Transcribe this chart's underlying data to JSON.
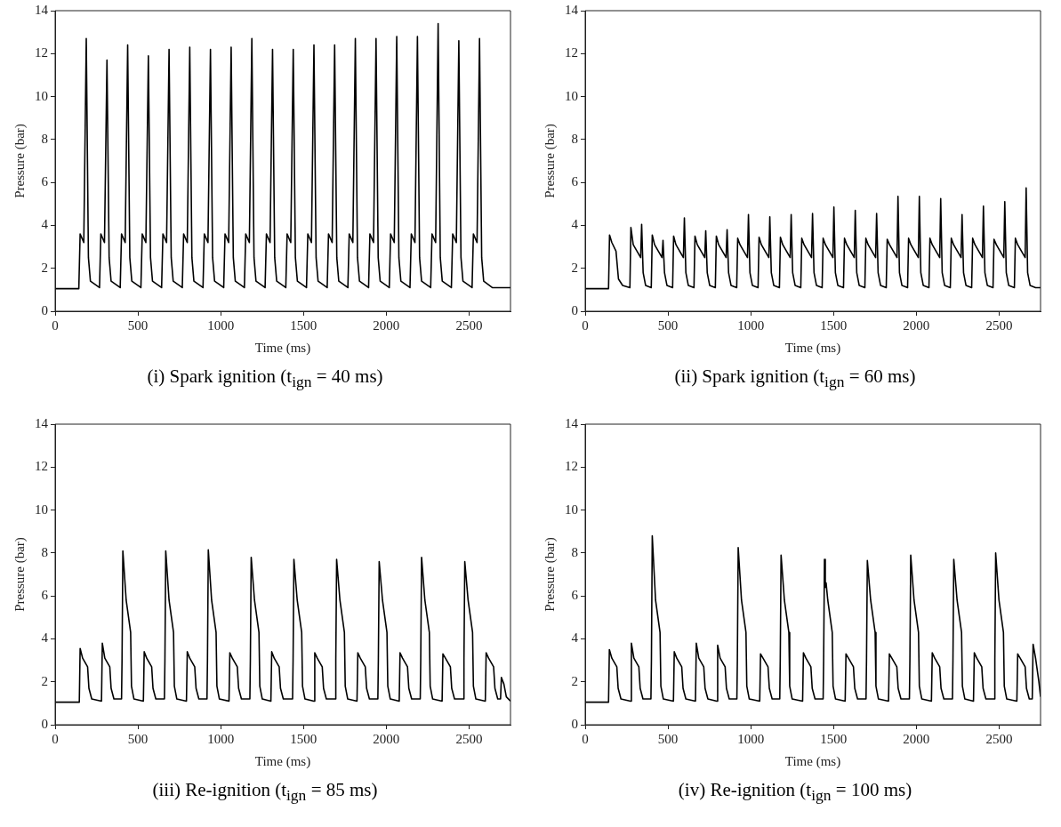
{
  "chart_data": [
    {
      "type": "line",
      "title": "(i) Spark ignition (t$_{ign}$ = 40 ms)",
      "xlabel": "Time (ms)",
      "ylabel": "Pressure (bar)",
      "xlim": [
        0,
        2750
      ],
      "xticks": [
        0,
        500,
        1000,
        1500,
        2000,
        2500
      ],
      "ylim": [
        0,
        14
      ],
      "yticks": [
        0,
        2,
        4,
        6,
        8,
        10,
        12,
        14
      ],
      "marker": "none",
      "series": [
        {
          "color": "#000000",
          "x": [
            0,
            143,
            151,
            173,
            188,
            201,
            213,
            268,
            276,
            298,
            313,
            326,
            338,
            393,
            401,
            423,
            438,
            451,
            463,
            518,
            526,
            548,
            563,
            576,
            588,
            643,
            651,
            673,
            688,
            701,
            713,
            768,
            776,
            798,
            813,
            826,
            838,
            893,
            901,
            923,
            938,
            951,
            963,
            1018,
            1026,
            1048,
            1063,
            1076,
            1088,
            1143,
            1151,
            1173,
            1188,
            1201,
            1213,
            1268,
            1276,
            1298,
            1313,
            1326,
            1338,
            1393,
            1401,
            1423,
            1438,
            1451,
            1463,
            1518,
            1526,
            1548,
            1563,
            1576,
            1588,
            1643,
            1651,
            1673,
            1688,
            1701,
            1713,
            1768,
            1776,
            1798,
            1813,
            1826,
            1838,
            1893,
            1901,
            1923,
            1938,
            1951,
            1963,
            2018,
            2026,
            2048,
            2063,
            2076,
            2088,
            2143,
            2151,
            2173,
            2188,
            2201,
            2213,
            2268,
            2276,
            2298,
            2313,
            2326,
            2338,
            2393,
            2401,
            2423,
            2438,
            2451,
            2463,
            2518,
            2526,
            2548,
            2563,
            2576,
            2588,
            2640,
            2750
          ],
          "values": [
            1.05,
            1.05,
            3.6,
            3.2,
            12.7,
            2.5,
            1.4,
            1.1,
            3.6,
            3.2,
            11.7,
            2.5,
            1.4,
            1.1,
            3.6,
            3.2,
            12.4,
            2.5,
            1.4,
            1.1,
            3.6,
            3.2,
            11.9,
            2.5,
            1.4,
            1.1,
            3.6,
            3.2,
            12.2,
            2.5,
            1.4,
            1.1,
            3.6,
            3.2,
            12.3,
            2.5,
            1.4,
            1.1,
            3.6,
            3.2,
            12.2,
            2.5,
            1.4,
            1.1,
            3.6,
            3.2,
            12.3,
            2.5,
            1.4,
            1.1,
            3.6,
            3.2,
            12.7,
            2.5,
            1.4,
            1.1,
            3.6,
            3.2,
            12.2,
            2.5,
            1.4,
            1.1,
            3.6,
            3.2,
            12.2,
            2.5,
            1.4,
            1.1,
            3.6,
            3.2,
            12.4,
            2.5,
            1.4,
            1.1,
            3.6,
            3.2,
            12.4,
            2.5,
            1.4,
            1.1,
            3.6,
            3.2,
            12.7,
            2.5,
            1.4,
            1.1,
            3.6,
            3.2,
            12.7,
            2.5,
            1.4,
            1.1,
            3.6,
            3.2,
            12.8,
            2.5,
            1.4,
            1.1,
            3.6,
            3.2,
            12.8,
            2.5,
            1.4,
            1.1,
            3.6,
            3.2,
            13.4,
            2.5,
            1.4,
            1.1,
            3.6,
            3.2,
            12.6,
            2.5,
            1.4,
            1.1,
            3.6,
            3.2,
            12.7,
            2.5,
            1.4,
            1.1,
            1.1
          ]
        }
      ]
    },
    {
      "type": "line",
      "title": "(ii) Spark ignition (t$_{ign}$ = 60 ms)",
      "xlabel": "Time (ms)",
      "ylabel": "Pressure (bar)",
      "xlim": [
        0,
        2750
      ],
      "xticks": [
        0,
        500,
        1000,
        1500,
        2000,
        2500
      ],
      "ylim": [
        0,
        14
      ],
      "yticks": [
        0,
        2,
        4,
        6,
        8,
        10,
        12,
        14
      ],
      "marker": "none",
      "series": [
        {
          "color": "#000000",
          "x": [
            0,
            141,
            147,
            161,
            186,
            201,
            226,
            270,
            276,
            290,
            335,
            341,
            350,
            365,
            399,
            405,
            419,
            464,
            470,
            479,
            494,
            528,
            534,
            548,
            593,
            599,
            608,
            623,
            657,
            663,
            677,
            722,
            728,
            737,
            752,
            786,
            792,
            806,
            851,
            857,
            866,
            881,
            915,
            921,
            935,
            980,
            986,
            995,
            1010,
            1044,
            1050,
            1064,
            1109,
            1115,
            1124,
            1139,
            1173,
            1179,
            1193,
            1238,
            1244,
            1253,
            1268,
            1302,
            1308,
            1322,
            1367,
            1373,
            1382,
            1397,
            1431,
            1437,
            1451,
            1496,
            1502,
            1511,
            1526,
            1560,
            1566,
            1580,
            1625,
            1631,
            1640,
            1655,
            1689,
            1695,
            1709,
            1754,
            1760,
            1769,
            1784,
            1818,
            1824,
            1838,
            1883,
            1889,
            1898,
            1913,
            1947,
            1953,
            1967,
            2012,
            2018,
            2027,
            2042,
            2076,
            2082,
            2096,
            2141,
            2147,
            2156,
            2171,
            2205,
            2211,
            2225,
            2270,
            2276,
            2285,
            2300,
            2334,
            2340,
            2354,
            2399,
            2405,
            2414,
            2429,
            2463,
            2469,
            2483,
            2528,
            2534,
            2543,
            2558,
            2592,
            2598,
            2612,
            2657,
            2663,
            2672,
            2687,
            2720,
            2750
          ],
          "values": [
            1.05,
            1.05,
            3.55,
            3.2,
            2.8,
            1.5,
            1.2,
            1.1,
            3.9,
            3.1,
            2.5,
            4.05,
            1.8,
            1.2,
            1.1,
            3.55,
            3.1,
            2.5,
            3.3,
            1.8,
            1.2,
            1.1,
            3.5,
            3.1,
            2.5,
            4.35,
            1.8,
            1.2,
            1.1,
            3.5,
            3.1,
            2.5,
            3.75,
            1.8,
            1.2,
            1.1,
            3.5,
            3.1,
            2.5,
            3.8,
            1.8,
            1.2,
            1.1,
            3.4,
            3.1,
            2.5,
            4.5,
            1.8,
            1.2,
            1.1,
            3.45,
            3.1,
            2.5,
            4.4,
            1.8,
            1.2,
            1.1,
            3.45,
            3.1,
            2.5,
            4.5,
            1.8,
            1.2,
            1.1,
            3.4,
            3.1,
            2.5,
            4.55,
            1.8,
            1.2,
            1.1,
            3.4,
            3.1,
            2.5,
            4.85,
            1.8,
            1.2,
            1.1,
            3.4,
            3.1,
            2.5,
            4.7,
            1.8,
            1.2,
            1.1,
            3.4,
            3.1,
            2.5,
            4.55,
            1.8,
            1.2,
            1.1,
            3.35,
            3.1,
            2.5,
            5.35,
            1.8,
            1.2,
            1.1,
            3.4,
            3.1,
            2.5,
            5.35,
            1.8,
            1.2,
            1.1,
            3.4,
            3.1,
            2.5,
            5.25,
            1.8,
            1.2,
            1.1,
            3.4,
            3.1,
            2.5,
            4.5,
            1.8,
            1.2,
            1.1,
            3.4,
            3.1,
            2.5,
            4.9,
            1.8,
            1.2,
            1.1,
            3.35,
            3.1,
            2.5,
            5.1,
            1.8,
            1.2,
            1.1,
            3.4,
            3.1,
            2.5,
            5.75,
            1.8,
            1.2,
            1.1,
            1.1
          ]
        }
      ]
    },
    {
      "type": "line",
      "title": "(iii) Re-ignition (t$_{ign}$ = 85 ms)",
      "xlabel": "Time (ms)",
      "ylabel": "Pressure (bar)",
      "xlim": [
        0,
        2750
      ],
      "xticks": [
        0,
        500,
        1000,
        1500,
        2000,
        2500
      ],
      "ylim": [
        0,
        14
      ],
      "yticks": [
        0,
        2,
        4,
        6,
        8,
        10,
        12,
        14
      ],
      "marker": "none",
      "series": [
        {
          "color": "#000000",
          "x": [
            0,
            146,
            151,
            166,
            196,
            204,
            221,
            280,
            285,
            300,
            330,
            338,
            355,
            401,
            404,
            409,
            429,
            456,
            461,
            476,
            533,
            538,
            553,
            583,
            591,
            608,
            660,
            663,
            668,
            688,
            715,
            720,
            735,
            793,
            798,
            813,
            843,
            851,
            868,
            917,
            920,
            925,
            945,
            972,
            977,
            992,
            1050,
            1055,
            1070,
            1100,
            1108,
            1125,
            1176,
            1179,
            1184,
            1204,
            1231,
            1236,
            1251,
            1303,
            1308,
            1323,
            1353,
            1361,
            1378,
            1434,
            1437,
            1442,
            1462,
            1489,
            1494,
            1509,
            1563,
            1568,
            1583,
            1613,
            1621,
            1638,
            1692,
            1695,
            1700,
            1720,
            1747,
            1752,
            1767,
            1823,
            1828,
            1843,
            1873,
            1881,
            1898,
            1949,
            1952,
            1957,
            1977,
            2004,
            2009,
            2024,
            2078,
            2083,
            2098,
            2128,
            2136,
            2153,
            2205,
            2208,
            2213,
            2233,
            2260,
            2265,
            2280,
            2337,
            2342,
            2357,
            2387,
            2395,
            2412,
            2466,
            2469,
            2474,
            2494,
            2521,
            2526,
            2541,
            2598,
            2603,
            2618,
            2648,
            2656,
            2673,
            2690,
            2695,
            2710,
            2725,
            2750
          ],
          "values": [
            1.05,
            1.05,
            3.55,
            3.1,
            2.7,
            1.7,
            1.2,
            1.1,
            3.8,
            3.1,
            2.7,
            1.7,
            1.2,
            1.2,
            3,
            8.1,
            5.8,
            4.3,
            1.8,
            1.2,
            1.1,
            3.4,
            3.1,
            2.7,
            1.7,
            1.2,
            1.2,
            3,
            8.1,
            5.8,
            4.3,
            1.8,
            1.2,
            1.1,
            3.4,
            3.1,
            2.7,
            1.7,
            1.2,
            1.2,
            3,
            8.15,
            5.8,
            4.3,
            1.8,
            1.2,
            1.1,
            3.35,
            3.1,
            2.7,
            1.7,
            1.2,
            1.2,
            3,
            7.8,
            5.8,
            4.3,
            1.8,
            1.2,
            1.1,
            3.4,
            3.1,
            2.7,
            1.7,
            1.2,
            1.2,
            3,
            7.7,
            5.8,
            4.3,
            1.8,
            1.2,
            1.1,
            3.35,
            3.1,
            2.7,
            1.7,
            1.2,
            1.2,
            3,
            7.7,
            5.8,
            4.3,
            1.8,
            1.2,
            1.1,
            3.35,
            3.1,
            2.7,
            1.7,
            1.2,
            1.2,
            3,
            7.6,
            5.8,
            4.3,
            1.8,
            1.2,
            1.1,
            3.35,
            3.1,
            2.7,
            1.7,
            1.2,
            1.2,
            3,
            7.8,
            5.8,
            4.3,
            1.8,
            1.2,
            1.1,
            3.3,
            3.1,
            2.7,
            1.7,
            1.2,
            1.2,
            3,
            7.6,
            5.8,
            4.3,
            1.8,
            1.2,
            1.1,
            3.35,
            3.1,
            2.7,
            1.7,
            1.2,
            1.2,
            2.2,
            1.9,
            1.3,
            1.1
          ]
        }
      ]
    },
    {
      "type": "line",
      "title": "(iv) Re-ignition (t$_{ign}$ = 100 ms)",
      "xlabel": "Time (ms)",
      "ylabel": "Pressure (bar)",
      "xlim": [
        0,
        2750
      ],
      "xticks": [
        0,
        500,
        1000,
        1500,
        2000,
        2500
      ],
      "ylim": [
        0,
        14
      ],
      "yticks": [
        0,
        2,
        4,
        6,
        8,
        10,
        12,
        14
      ],
      "marker": "none",
      "series": [
        {
          "color": "#000000",
          "x": [
            0,
            141,
            146,
            161,
            191,
            199,
            216,
            274,
            279,
            294,
            324,
            332,
            349,
            397,
            400,
            405,
            425,
            452,
            457,
            472,
            533,
            538,
            553,
            583,
            591,
            608,
            666,
            671,
            686,
            716,
            724,
            741,
            795,
            800,
            815,
            845,
            853,
            870,
            916,
            919,
            924,
            944,
            971,
            976,
            991,
            1054,
            1059,
            1074,
            1104,
            1112,
            1129,
            1175,
            1178,
            1183,
            1203,
            1230,
            1235,
            1250,
            1313,
            1318,
            1333,
            1363,
            1371,
            1388,
            1437,
            1440,
            1445,
            1450,
            1455,
            1465,
            1492,
            1497,
            1512,
            1570,
            1575,
            1590,
            1620,
            1628,
            1645,
            1696,
            1699,
            1704,
            1724,
            1751,
            1756,
            1771,
            1832,
            1837,
            1852,
            1882,
            1890,
            1907,
            1958,
            1961,
            1966,
            1986,
            2013,
            2018,
            2033,
            2091,
            2096,
            2111,
            2141,
            2149,
            2166,
            2218,
            2221,
            2226,
            2246,
            2273,
            2278,
            2293,
            2345,
            2350,
            2365,
            2395,
            2403,
            2420,
            2471,
            2474,
            2479,
            2499,
            2526,
            2531,
            2546,
            2607,
            2612,
            2627,
            2657,
            2665,
            2682,
            2700,
            2705,
            2720,
            2740,
            2750
          ],
          "values": [
            1.05,
            1.05,
            3.5,
            3.1,
            2.7,
            1.7,
            1.2,
            1.1,
            3.8,
            3.1,
            2.7,
            1.7,
            1.2,
            1.2,
            3,
            8.8,
            5.8,
            4.3,
            1.8,
            1.2,
            1.1,
            3.4,
            3.1,
            2.7,
            1.7,
            1.2,
            1.1,
            3.8,
            3.1,
            2.7,
            1.7,
            1.2,
            1.1,
            3.7,
            3.1,
            2.7,
            1.7,
            1.2,
            1.2,
            3,
            8.25,
            5.8,
            4.3,
            1.8,
            1.2,
            1.1,
            3.3,
            3.1,
            2.7,
            1.7,
            1.2,
            1.2,
            3,
            7.9,
            5.8,
            4.3,
            1.8,
            1.2,
            1.1,
            3.35,
            3.1,
            2.7,
            1.7,
            1.2,
            1.2,
            3,
            7.7,
            6.4,
            6.6,
            5.8,
            4.3,
            1.8,
            1.2,
            1.1,
            3.3,
            3.1,
            2.7,
            1.7,
            1.2,
            1.2,
            3,
            7.65,
            5.8,
            4.3,
            1.8,
            1.2,
            1.1,
            3.3,
            3.1,
            2.7,
            1.7,
            1.2,
            1.2,
            3,
            7.9,
            5.8,
            4.3,
            1.8,
            1.2,
            1.1,
            3.35,
            3.1,
            2.7,
            1.7,
            1.2,
            1.2,
            3,
            7.7,
            5.8,
            4.3,
            1.8,
            1.2,
            1.1,
            3.35,
            3.1,
            2.7,
            1.7,
            1.2,
            1.2,
            3,
            8,
            5.8,
            4.3,
            1.8,
            1.2,
            1.1,
            3.3,
            3.1,
            2.7,
            1.7,
            1.2,
            1.2,
            3.75,
            3.1,
            2,
            1.3
          ]
        }
      ]
    }
  ]
}
